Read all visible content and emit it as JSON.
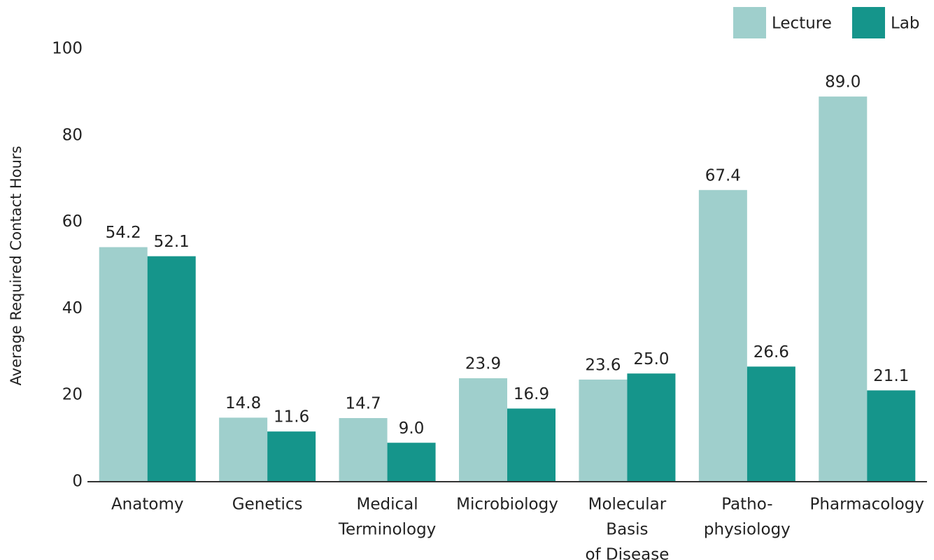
{
  "chart_data": {
    "type": "bar",
    "y_label": "Average Required Contact Hours",
    "categories": [
      [
        "Anatomy"
      ],
      [
        "Genetics"
      ],
      [
        "Medical",
        "Terminology"
      ],
      [
        "Microbiology"
      ],
      [
        "Molecular",
        "Basis",
        "of Disease"
      ],
      [
        "Patho-",
        "physiology"
      ],
      [
        "Pharmacology"
      ]
    ],
    "series": [
      {
        "name": "Lecture",
        "color": "#9fcfcc",
        "values": [
          54.2,
          14.8,
          14.7,
          23.9,
          23.6,
          67.4,
          89
        ],
        "value_labels": [
          "54.2",
          "14.8",
          "14.7",
          "23.9",
          "23.6",
          "67.4",
          "89.0"
        ]
      },
      {
        "name": "Lab",
        "color": "#15958b",
        "values": [
          52.1,
          11.6,
          9,
          16.9,
          25,
          26.6,
          21.1
        ],
        "value_labels": [
          "52.1",
          "11.6",
          "9.0",
          "16.9",
          "25.0",
          "26.6",
          "21.1"
        ]
      }
    ],
    "ylim": [
      0,
      100
    ],
    "yticks": [
      0,
      20,
      40,
      60,
      80,
      100
    ],
    "grid": false,
    "legend": "top-right"
  }
}
